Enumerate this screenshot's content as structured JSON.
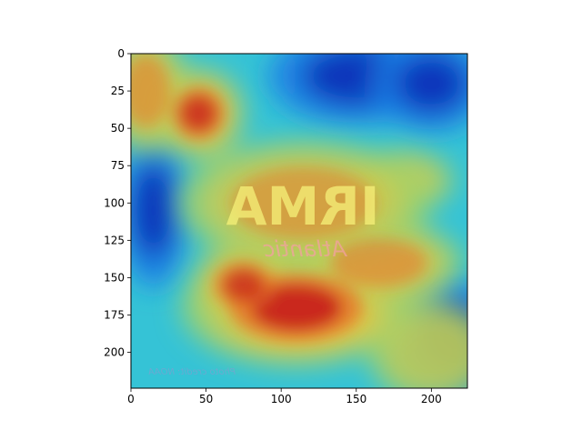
{
  "chart_data": {
    "type": "heatmap",
    "title": "",
    "xlabel": "",
    "ylabel": "",
    "xlim": [
      0,
      224
    ],
    "ylim": [
      224,
      0
    ],
    "x_ticks": [
      0,
      50,
      100,
      150,
      200
    ],
    "y_ticks": [
      0,
      25,
      50,
      75,
      100,
      125,
      150,
      175,
      200
    ],
    "grid": false,
    "colormap": "jet",
    "background_image_text": {
      "main": "IRMA",
      "sub": "Atlantic",
      "credit": "Photo credit: NOAA"
    },
    "hotspots": [
      {
        "x": 110,
        "y": 170,
        "intensity": 1.0,
        "rx": 55,
        "ry": 28
      },
      {
        "x": 75,
        "y": 155,
        "intensity": 0.8,
        "rx": 25,
        "ry": 20
      },
      {
        "x": 165,
        "y": 140,
        "intensity": 0.7,
        "rx": 40,
        "ry": 20
      },
      {
        "x": 45,
        "y": 40,
        "intensity": 0.85,
        "rx": 22,
        "ry": 22
      },
      {
        "x": 10,
        "y": 25,
        "intensity": 0.65,
        "rx": 20,
        "ry": 30
      },
      {
        "x": 200,
        "y": 200,
        "intensity": 0.45,
        "rx": 30,
        "ry": 25
      },
      {
        "x": 180,
        "y": 85,
        "intensity": 0.55,
        "rx": 25,
        "ry": 15
      },
      {
        "x": 115,
        "y": 100,
        "intensity": 0.6,
        "rx": 60,
        "ry": 30
      }
    ],
    "coldspots": [
      {
        "x": 150,
        "y": 15,
        "rx": 45,
        "ry": 25
      },
      {
        "x": 215,
        "y": 190,
        "rx": 30,
        "ry": 30
      },
      {
        "x": 200,
        "y": 20,
        "rx": 30,
        "ry": 25
      },
      {
        "x": 15,
        "y": 105,
        "rx": 18,
        "ry": 40
      }
    ]
  },
  "colors": {
    "cold": "#1130b8",
    "cool": "#1d7fe6",
    "cyan": "#35c3d6",
    "green": "#9fd26a",
    "yellow": "#e8c640",
    "orange": "#e67a2a",
    "hot": "#c8201c"
  }
}
